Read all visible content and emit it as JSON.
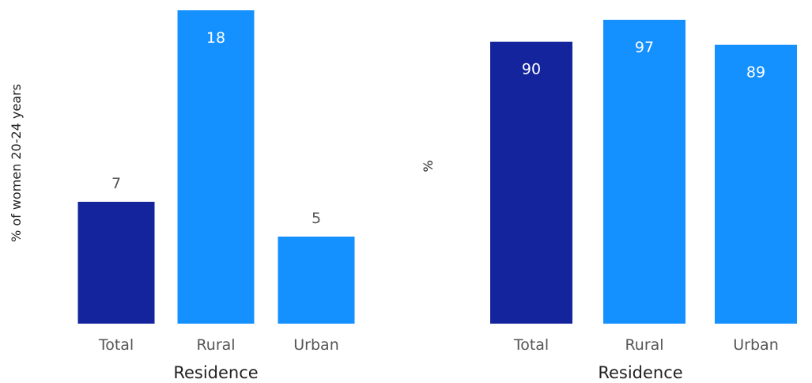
{
  "chart_data": [
    {
      "type": "bar",
      "categories": [
        "Total",
        "Rural",
        "Urban"
      ],
      "values": [
        7,
        18,
        5
      ],
      "xlabel": "Residence",
      "ylabel": "% of women 20-24 years",
      "ylim": [
        0,
        18
      ],
      "grid": false,
      "colors": [
        "#13249c",
        "#1490ff",
        "#1490ff"
      ],
      "label_color": [
        "#555555",
        "#ffffff",
        "#555555"
      ],
      "label_inside": [
        false,
        true,
        false
      ]
    },
    {
      "type": "bar",
      "categories": [
        "Total",
        "Rural",
        "Urban"
      ],
      "values": [
        90,
        97,
        89
      ],
      "xlabel": "Residence",
      "ylabel": "%",
      "ylim": [
        0,
        97
      ],
      "grid": false,
      "colors": [
        "#13249c",
        "#1490ff",
        "#1490ff"
      ],
      "label_color": [
        "#ffffff",
        "#ffffff",
        "#ffffff"
      ],
      "label_inside": [
        true,
        true,
        true
      ]
    }
  ]
}
